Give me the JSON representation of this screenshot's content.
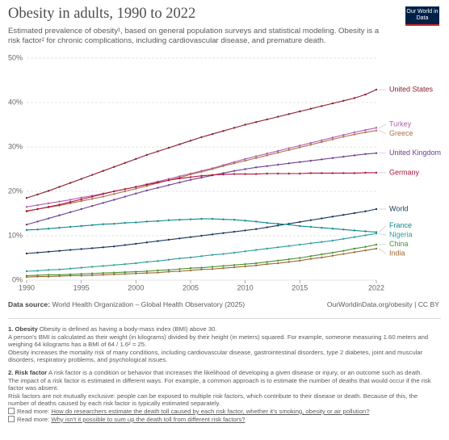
{
  "chart_data": {
    "type": "line",
    "title": "Obesity in adults, 1990 to 2022",
    "subtitle": "Estimated prevalence of obesity¹, based on general population surveys and statistical modeling. Obesity is a risk factor² for chronic complications, including cardiovascular disease, and premature death.",
    "logo": "Our World in Data",
    "x": [
      1990,
      1991,
      1992,
      1993,
      1994,
      1995,
      1996,
      1997,
      1998,
      1999,
      2000,
      2001,
      2002,
      2003,
      2004,
      2005,
      2006,
      2007,
      2008,
      2009,
      2010,
      2011,
      2012,
      2013,
      2014,
      2015,
      2016,
      2017,
      2018,
      2019,
      2020,
      2021,
      2022
    ],
    "xlim": [
      1990,
      2022
    ],
    "xticks": [
      1990,
      1995,
      2000,
      2005,
      2010,
      2015,
      2022
    ],
    "ylim": [
      0,
      50
    ],
    "yticks": [
      {
        "value": 0,
        "label": "0%"
      },
      {
        "value": 10,
        "label": "10%"
      },
      {
        "value": 20,
        "label": "20%"
      },
      {
        "value": 30,
        "label": "30%"
      },
      {
        "value": 40,
        "label": "40%"
      },
      {
        "value": 50,
        "label": "50%"
      }
    ],
    "grid": true,
    "series": [
      {
        "name": "United States",
        "color": "#8c1c2e",
        "values": [
          18.5,
          19.3,
          20.1,
          21.0,
          21.9,
          22.8,
          23.7,
          24.6,
          25.5,
          26.4,
          27.3,
          28.2,
          29.0,
          29.8,
          30.6,
          31.4,
          32.2,
          32.9,
          33.6,
          34.3,
          35.0,
          35.6,
          36.2,
          36.8,
          37.4,
          38.0,
          38.6,
          39.2,
          39.8,
          40.4,
          41.0,
          41.8,
          42.9
        ]
      },
      {
        "name": "Turkey",
        "color": "#b15cb0",
        "values": [
          16.5,
          16.9,
          17.3,
          17.7,
          18.1,
          18.6,
          19.0,
          19.5,
          20.0,
          20.5,
          21.0,
          21.6,
          22.2,
          22.8,
          23.4,
          24.0,
          24.6,
          25.2,
          25.9,
          26.6,
          27.3,
          27.9,
          28.5,
          29.1,
          29.7,
          30.3,
          30.9,
          31.5,
          32.1,
          32.7,
          33.3,
          33.8,
          34.3
        ]
      },
      {
        "name": "Greece",
        "color": "#b0704a",
        "values": [
          15.6,
          16.0,
          16.4,
          16.8,
          17.3,
          17.8,
          18.3,
          18.8,
          19.4,
          20.0,
          20.6,
          21.2,
          21.9,
          22.5,
          23.1,
          23.8,
          24.4,
          25.0,
          25.7,
          26.3,
          26.9,
          27.5,
          28.1,
          28.7,
          29.3,
          29.9,
          30.5,
          31.1,
          31.7,
          32.3,
          32.8,
          33.3,
          33.7
        ]
      },
      {
        "name": "United Kingdom",
        "color": "#6d3e91",
        "values": [
          12.5,
          13.2,
          13.9,
          14.6,
          15.3,
          16.0,
          16.7,
          17.4,
          18.1,
          18.8,
          19.5,
          20.2,
          20.8,
          21.4,
          22.0,
          22.6,
          23.1,
          23.6,
          24.1,
          24.6,
          25.0,
          25.4,
          25.7,
          26.0,
          26.3,
          26.6,
          26.9,
          27.2,
          27.5,
          27.8,
          28.1,
          28.4,
          28.6
        ]
      },
      {
        "name": "Germany",
        "color": "#b0123a",
        "values": [
          15.5,
          16.0,
          16.5,
          17.0,
          17.6,
          18.2,
          18.8,
          19.4,
          20.0,
          20.5,
          21.0,
          21.5,
          22.0,
          22.5,
          22.9,
          23.2,
          23.5,
          23.7,
          23.8,
          23.9,
          23.9,
          23.9,
          24.0,
          24.0,
          24.0,
          24.0,
          24.1,
          24.1,
          24.1,
          24.1,
          24.1,
          24.2,
          24.2
        ]
      },
      {
        "name": "World",
        "color": "#18375c",
        "values": [
          6.0,
          6.2,
          6.4,
          6.6,
          6.8,
          7.0,
          7.2,
          7.4,
          7.6,
          7.9,
          8.2,
          8.5,
          8.8,
          9.1,
          9.4,
          9.7,
          10.0,
          10.3,
          10.6,
          10.9,
          11.2,
          11.5,
          11.9,
          12.3,
          12.7,
          13.1,
          13.5,
          13.9,
          14.3,
          14.7,
          15.1,
          15.5,
          16.0
        ]
      },
      {
        "name": "France",
        "color": "#0e8a8c",
        "values": [
          11.3,
          11.4,
          11.6,
          11.8,
          12.0,
          12.2,
          12.4,
          12.6,
          12.7,
          12.9,
          13.0,
          13.2,
          13.3,
          13.5,
          13.6,
          13.7,
          13.8,
          13.8,
          13.7,
          13.6,
          13.4,
          13.2,
          12.9,
          12.7,
          12.5,
          12.2,
          12.0,
          11.8,
          11.6,
          11.4,
          11.2,
          11.0,
          10.8
        ]
      },
      {
        "name": "Nigeria",
        "color": "#2b9e9a",
        "values": [
          2.0,
          2.1,
          2.3,
          2.4,
          2.6,
          2.8,
          3.0,
          3.2,
          3.4,
          3.6,
          3.8,
          4.1,
          4.3,
          4.6,
          4.9,
          5.1,
          5.4,
          5.7,
          5.9,
          6.2,
          6.5,
          6.8,
          7.1,
          7.4,
          7.7,
          8.0,
          8.3,
          8.6,
          8.9,
          9.3,
          9.7,
          10.1,
          10.5
        ]
      },
      {
        "name": "China",
        "color": "#4c8f2e",
        "values": [
          1.0,
          1.1,
          1.2,
          1.2,
          1.3,
          1.4,
          1.5,
          1.6,
          1.7,
          1.8,
          1.9,
          2.0,
          2.2,
          2.3,
          2.5,
          2.7,
          2.8,
          3.0,
          3.2,
          3.4,
          3.6,
          3.8,
          4.1,
          4.4,
          4.7,
          5.0,
          5.4,
          5.8,
          6.2,
          6.6,
          7.1,
          7.5,
          8.0
        ]
      },
      {
        "name": "India",
        "color": "#9a6a32",
        "values": [
          0.7,
          0.8,
          0.8,
          0.9,
          1.0,
          1.0,
          1.1,
          1.2,
          1.3,
          1.4,
          1.5,
          1.6,
          1.7,
          1.9,
          2.0,
          2.2,
          2.4,
          2.5,
          2.7,
          2.9,
          3.1,
          3.3,
          3.6,
          3.8,
          4.1,
          4.4,
          4.8,
          5.1,
          5.5,
          5.9,
          6.3,
          6.7,
          7.1
        ]
      }
    ],
    "source_label": "Data source:",
    "source": "World Health Organization – Global Health Observatory (2025)",
    "url": "OurWorldinData.org/obesity | CC BY",
    "notes": [
      {
        "heading": "1. Obesity",
        "text": "Obesity is defined as having a body-mass index (BMI) above 30.",
        "paragraphs": [
          "A person's BMI is calculated as their weight (in kilograms) divided by their height (in meters) squared. For example, someone measuring 1.60 meters and weighing 64 kilograms has a BMI of 64 / 1.6² = 25.",
          "Obesity increases the mortality risk of many conditions, including cardiovascular disease, gastrointestinal disorders, type 2 diabetes, joint and muscular disorders, respiratory problems, and psychological issues."
        ]
      },
      {
        "heading": "2. Risk factor",
        "text": "A risk factor is a condition or behavior that increases the likelihood of developing a given disease or injury, or an outcome such as death.",
        "paragraphs": [
          "The impact of a risk factor is estimated in different ways. For example, a common approach is to estimate the number of deaths that would occur if the risk factor was absent.",
          "Risk factors are not mutually exclusive: people can be exposed to multiple risk factors, which contribute to their disease or death. Because of this, the number of deaths caused by each risk factor is typically estimated separately."
        ]
      }
    ],
    "read_more": [
      {
        "prefix": "Read more:",
        "link": "How do researchers estimate the death toll caused by each risk factor, whether it's smoking, obesity or air pollution?"
      },
      {
        "prefix": "Read more:",
        "link": "Why isn't it possible to sum up the death toll from different risk factors?"
      }
    ]
  }
}
